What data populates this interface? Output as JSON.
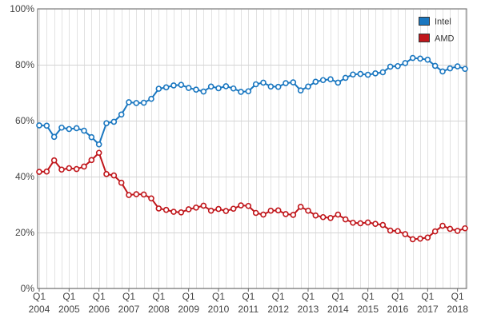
{
  "chart_data": {
    "type": "line",
    "title": "",
    "xlabel": "",
    "ylabel": "",
    "ylim": [
      0,
      100
    ],
    "y_ticks": [
      "0%",
      "20%",
      "40%",
      "60%",
      "80%",
      "100%"
    ],
    "grid": true,
    "legend_position": "top-right",
    "x_tick_labels": [
      {
        "quarter": "Q1",
        "year": "2004"
      },
      {
        "quarter": "Q1",
        "year": "2005"
      },
      {
        "quarter": "Q1",
        "year": "2006"
      },
      {
        "quarter": "Q1",
        "year": "2007"
      },
      {
        "quarter": "Q1",
        "year": "2008"
      },
      {
        "quarter": "Q1",
        "year": "2009"
      },
      {
        "quarter": "Q1",
        "year": "2010"
      },
      {
        "quarter": "Q1",
        "year": "2011"
      },
      {
        "quarter": "Q1",
        "year": "2012"
      },
      {
        "quarter": "Q1",
        "year": "2013"
      },
      {
        "quarter": "Q1",
        "year": "2014"
      },
      {
        "quarter": "Q1",
        "year": "2015"
      },
      {
        "quarter": "Q1",
        "year": "2016"
      },
      {
        "quarter": "Q1",
        "year": "2017"
      },
      {
        "quarter": "Q1",
        "year": "2018"
      }
    ],
    "series": [
      {
        "name": "Intel",
        "color": "#1a77c0",
        "values": [
          58.3,
          58.2,
          54.2,
          57.5,
          57.0,
          57.3,
          56.4,
          54.1,
          51.5,
          59.1,
          59.6,
          62.2,
          66.6,
          66.3,
          66.4,
          67.8,
          71.4,
          71.9,
          72.6,
          72.8,
          71.7,
          71.1,
          70.4,
          72.2,
          71.6,
          72.3,
          71.5,
          70.3,
          70.5,
          73.0,
          73.6,
          72.2,
          72.1,
          73.4,
          73.7,
          70.8,
          72.2,
          73.9,
          74.5,
          74.8,
          73.6,
          75.3,
          76.5,
          76.7,
          76.4,
          76.9,
          77.3,
          79.3,
          79.5,
          80.6,
          82.4,
          82.2,
          81.8,
          79.6,
          77.6,
          78.7,
          79.4,
          78.5
        ]
      },
      {
        "name": "AMD",
        "color": "#c0161b",
        "values": [
          41.7,
          41.8,
          45.8,
          42.5,
          43.0,
          42.7,
          43.6,
          45.9,
          48.5,
          40.9,
          40.4,
          37.8,
          33.4,
          33.7,
          33.6,
          32.2,
          28.6,
          28.1,
          27.4,
          27.2,
          28.3,
          28.9,
          29.6,
          27.8,
          28.4,
          27.7,
          28.5,
          29.7,
          29.5,
          27.0,
          26.4,
          27.8,
          27.9,
          26.6,
          26.3,
          29.2,
          27.8,
          26.1,
          25.5,
          25.2,
          26.4,
          24.7,
          23.5,
          23.3,
          23.6,
          23.1,
          22.7,
          20.7,
          20.5,
          19.4,
          17.6,
          17.8,
          18.2,
          20.4,
          22.4,
          21.3,
          20.6,
          21.5
        ]
      }
    ]
  }
}
